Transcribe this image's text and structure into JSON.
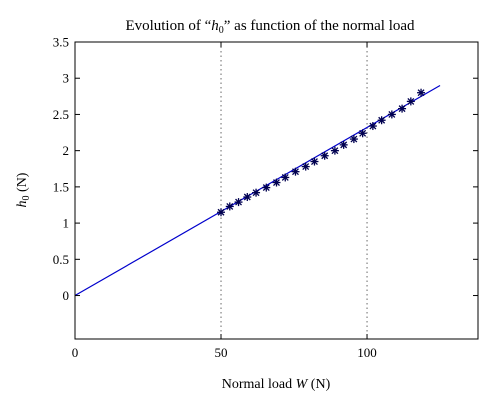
{
  "chart_data": {
    "type": "scatter",
    "title": "Evolution of “h₀” as function of the normal load",
    "xlabel": "Normal load W (N)",
    "ylabel": "h₀ (N)",
    "xlim": [
      0,
      138
    ],
    "ylim": [
      -0.6,
      3.5
    ],
    "xticks": [
      0,
      50,
      100
    ],
    "yticks": [
      0,
      0.5,
      1,
      1.5,
      2,
      2.5,
      3,
      3.5
    ],
    "grid": "dotted-vertical-at-x-ticks",
    "series": [
      {
        "kind": "line",
        "color": "#0000cc",
        "x": [
          0,
          125
        ],
        "y": [
          0,
          2.9
        ]
      },
      {
        "kind": "markers",
        "marker": "asterisk",
        "color": "#000050",
        "x": [
          50,
          53,
          56,
          59,
          62,
          65.5,
          69,
          72,
          75.5,
          79,
          82,
          85.5,
          89,
          92,
          95.5,
          98.5,
          102,
          105,
          108.5,
          112,
          115,
          118.5
        ],
        "y": [
          1.15,
          1.23,
          1.29,
          1.36,
          1.42,
          1.49,
          1.56,
          1.63,
          1.71,
          1.78,
          1.85,
          1.93,
          2.0,
          2.08,
          2.16,
          2.24,
          2.34,
          2.42,
          2.5,
          2.58,
          2.68,
          2.8
        ]
      }
    ]
  }
}
